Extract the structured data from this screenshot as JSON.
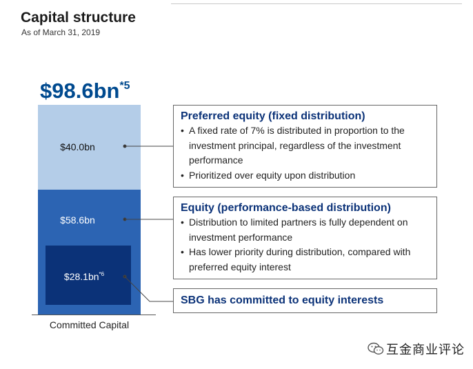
{
  "header": {
    "title": "Capital structure",
    "subtitle": "As of March 31, 2019"
  },
  "total": {
    "value": "$98.6bn",
    "note": "*5"
  },
  "bar": {
    "axis_label": "Committed Capital",
    "segments": [
      {
        "label": "$40.0bn",
        "value": 40.0,
        "color": "#b4cde8"
      },
      {
        "label": "$58.6bn",
        "value": 58.6,
        "color": "#2c64b3"
      }
    ],
    "inner": {
      "label": "$28.1bn",
      "note": "*6",
      "value": 28.1,
      "color": "#0b3278"
    }
  },
  "callouts": {
    "preferred": {
      "title": "Preferred equity (fixed distribution)",
      "bullets": [
        "A fixed rate of 7% is distributed in proportion to the investment principal, regardless of the investment performance",
        "Prioritized over equity upon distribution"
      ]
    },
    "equity": {
      "title": "Equity (performance-based distribution)",
      "bullets": [
        "Distribution to limited partners is fully dependent on investment performance",
        "Has lower priority during distribution, compared with preferred equity interest"
      ]
    },
    "sbg": {
      "title": "SBG has committed to equity interests"
    }
  },
  "watermark": {
    "icon": "wechat-icon",
    "text": "互金商业评论"
  }
}
